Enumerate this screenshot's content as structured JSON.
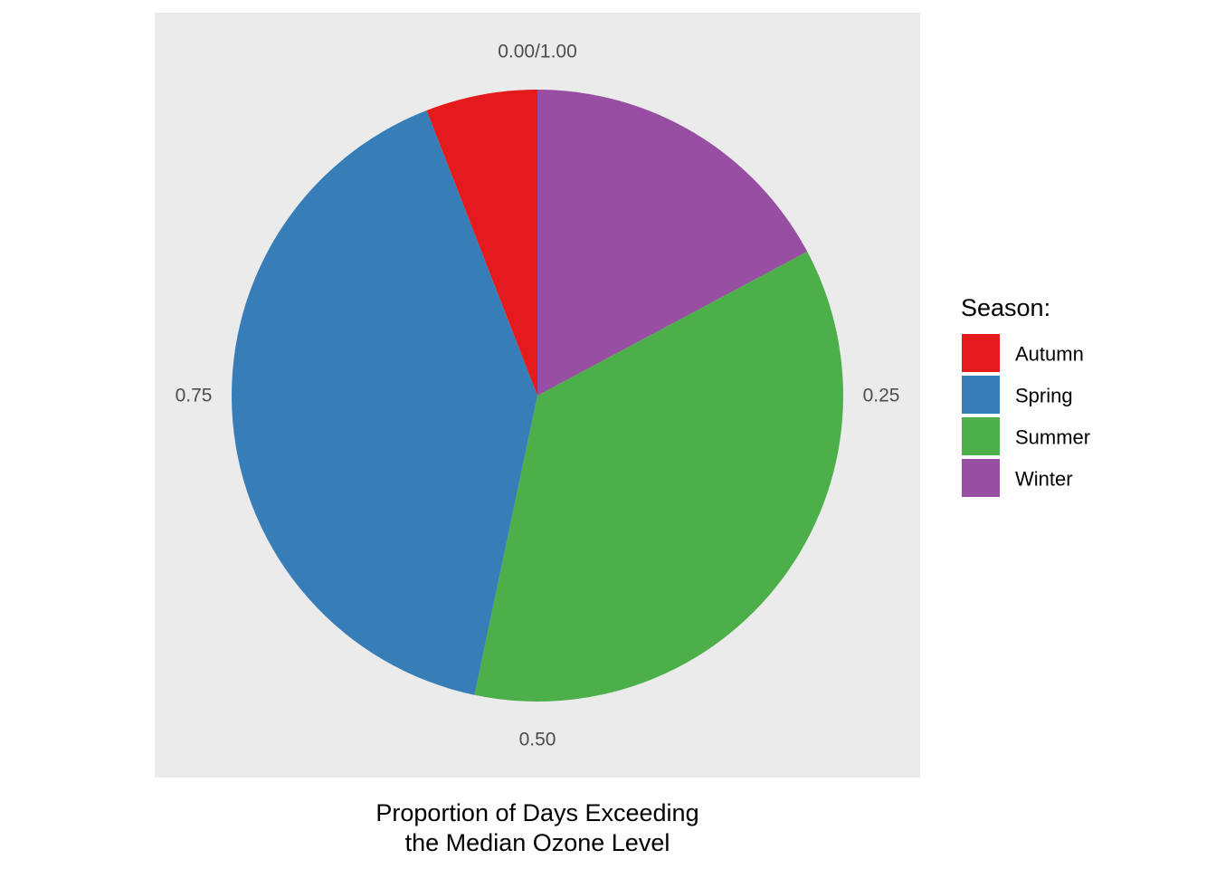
{
  "chart_data": {
    "type": "pie",
    "xlabel_lines": [
      "Proportion of Days Exceeding",
      "the Median Ozone Level"
    ],
    "theta_ticks": [
      {
        "value": 0.0,
        "label": "0.00/1.00"
      },
      {
        "value": 0.25,
        "label": "0.25"
      },
      {
        "value": 0.5,
        "label": "0.50"
      },
      {
        "value": 0.75,
        "label": "0.75"
      }
    ],
    "legend": {
      "title": "Season:",
      "placement": "right"
    },
    "slices": [
      {
        "label": "Winter",
        "value": 0.172,
        "color": "#984EA3"
      },
      {
        "label": "Summer",
        "value": 0.361,
        "color": "#4DAF4A"
      },
      {
        "label": "Spring",
        "value": 0.408,
        "color": "#377EB8"
      },
      {
        "label": "Autumn",
        "value": 0.059,
        "color": "#E41A1C"
      }
    ],
    "legend_order": [
      "Autumn",
      "Spring",
      "Summer",
      "Winter"
    ],
    "panel_background": "#EBEBEB"
  }
}
